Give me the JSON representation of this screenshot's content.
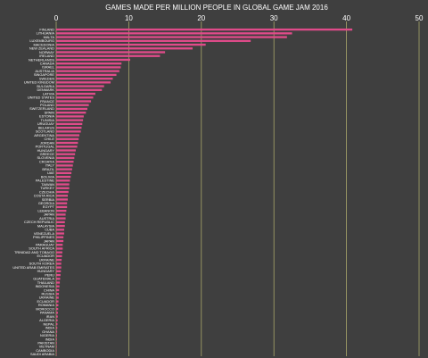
{
  "colors": {
    "background": "#3f3f3f",
    "bar": "#e04b8a",
    "grid": "#a8a66a",
    "text": "#ffffff"
  },
  "chart_data": {
    "type": "bar",
    "orientation": "horizontal",
    "title": "GAMES MADE PER MILLION PEOPLE IN GLOBAL GAME JAM 2016",
    "xlabel": "",
    "ylabel": "",
    "xlim": [
      0,
      50
    ],
    "xticks": [
      0,
      10,
      20,
      30,
      40,
      50
    ],
    "grid": true,
    "legend": "none",
    "categories": [
      "FINLAND",
      "LITHUANIA",
      "MALTA",
      "LUXEMBOURG",
      "MACEDONIA",
      "NEW ZEALAND",
      "NORWAY",
      "IRELAND",
      "NETHERLANDS",
      "CANADA",
      "ISRAEL",
      "AUSTRALIA",
      "SINGAPORE",
      "SWEDEN",
      "UNITED KINGDOM",
      "BULGARIA",
      "DENMARK",
      "LATVIA",
      "UNITED STATES",
      "FRANCE",
      "POLAND",
      "SWITZERLAND",
      "SPAIN",
      "ESTONIA",
      "TUNISIA",
      "URUGUAY",
      "BELARUS",
      "SCOTLAND",
      "ARGENTINA",
      "CHILE",
      "JORDAN",
      "PORTUGAL",
      "HUNGARY",
      "GREECE",
      "SLOVENIA",
      "CROATIA",
      "ITALY",
      "BRAZIL",
      "UAE",
      "BOLIVIA",
      "PALESTINE",
      "TAIWAN",
      "TURKEY",
      "CZECHIA",
      "COSTA RICA",
      "SERBIA",
      "GEORGIA",
      "EGYPT",
      "LEBANON",
      "JAPAN",
      "AUSTRIA",
      "CZECH REPUBLIC",
      "MALAYSIA",
      "CUBA",
      "VENEZUELA",
      "PHILIPPINES",
      "JAPAN",
      "PARAGUAY",
      "SOUTH AFRICA",
      "TRINIDAD AND TOBAGO",
      "ECUADOR",
      "UKRAINE",
      "SOUTH KOREA",
      "UNITED ARAB EMIRATES",
      "HUNGARY",
      "PERU",
      "GUATEMALA",
      "THAILAND",
      "INDONESIA",
      "CHINA",
      "RUSSIA",
      "UKRAINE",
      "ECUADOR",
      "ROMANIA",
      "MOROCCO",
      "PANAMA",
      "IRAN",
      "ALGERIA",
      "NEPAL",
      "INDIA",
      "GHANA",
      "NIGERIA",
      "INDIA",
      "PAKISTAN",
      "VIETNAM",
      "CAMBODIA",
      "SAUDI ARABIA"
    ],
    "values": [
      40.8,
      32.5,
      31.8,
      26.8,
      20.6,
      18.8,
      15.0,
      14.3,
      10.2,
      9.0,
      8.9,
      8.7,
      8.3,
      7.8,
      7.5,
      6.6,
      6.3,
      5.4,
      5.1,
      4.8,
      4.5,
      4.3,
      4.1,
      3.8,
      3.7,
      3.6,
      3.5,
      3.4,
      3.2,
      3.1,
      3.0,
      2.9,
      2.7,
      2.6,
      2.5,
      2.4,
      2.3,
      2.2,
      2.1,
      2.0,
      1.9,
      1.8,
      1.8,
      1.7,
      1.6,
      1.6,
      1.5,
      1.5,
      1.4,
      1.3,
      1.3,
      1.2,
      1.2,
      1.1,
      1.1,
      1.0,
      1.0,
      0.9,
      0.9,
      0.85,
      0.8,
      0.75,
      0.7,
      0.7,
      0.65,
      0.6,
      0.55,
      0.5,
      0.45,
      0.4,
      0.38,
      0.35,
      0.32,
      0.3,
      0.28,
      0.25,
      0.22,
      0.2,
      0.18,
      0.16,
      0.14,
      0.12,
      0.1,
      0.09,
      0.08,
      0.07,
      0.05
    ]
  }
}
